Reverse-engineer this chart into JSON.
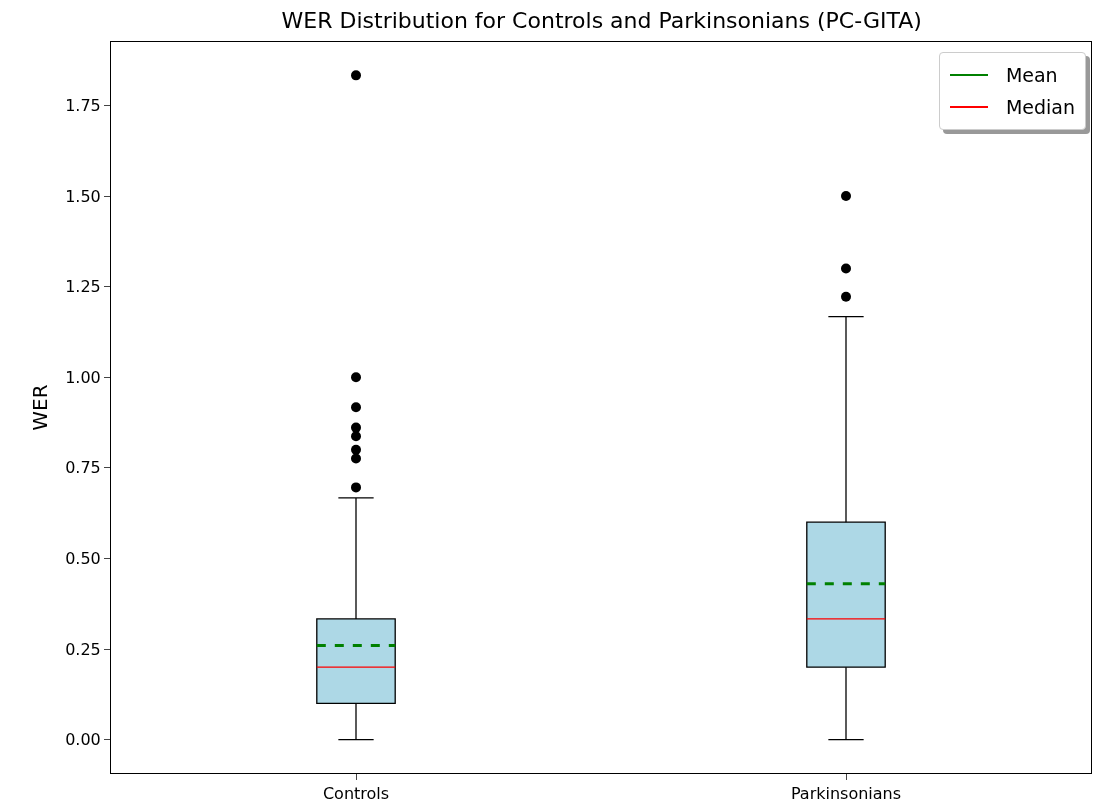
{
  "chart_data": {
    "type": "box",
    "title": "WER Distribution for Controls and Parkinsonians (PC-GITA)",
    "ylabel": "WER",
    "categories": [
      "Controls",
      "Parkinsonians"
    ],
    "boxes": [
      {
        "low": 0,
        "q1": 0.1,
        "median": 0.2,
        "q3": 0.333,
        "high": 0.667,
        "mean": 0.26,
        "outliers": [
          0.696,
          0.776,
          0.8,
          0.837,
          0.861,
          0.917,
          1.0,
          1.833
        ]
      },
      {
        "low": 0,
        "q1": 0.2,
        "median": 0.333,
        "q3": 0.6,
        "high": 1.167,
        "mean": 0.43,
        "outliers": [
          1.222,
          1.3,
          1.5
        ]
      }
    ],
    "color": "#add8e6",
    "annotations": [
      "Mean",
      "Median"
    ],
    "ylim": [
      -0.092,
      1.925
    ],
    "yticks": [
      {
        "value": 0,
        "label": "0.00"
      },
      0.25,
      {
        "value": 0.5,
        "label": "0.50"
      },
      0.75,
      {
        "value": 1,
        "label": "1.00"
      },
      1.25,
      {
        "value": 1.5,
        "label": "1.50"
      },
      1.75
    ],
    "grid": false,
    "marker": "circle"
  }
}
